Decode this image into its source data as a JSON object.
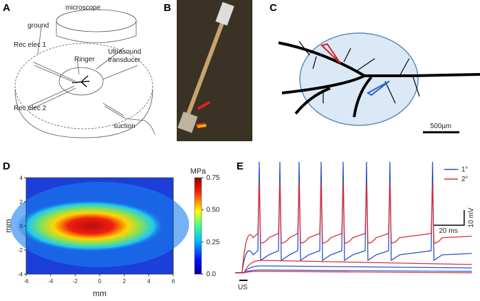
{
  "panel_a": {
    "label": "A",
    "microscope": "microscope",
    "ground": "ground",
    "rec_elec_1": "Rec elec 1",
    "ringer": "Ringer",
    "transducer": [
      "Ultrasound",
      "transducer"
    ],
    "rec_elec_2": "Rec elec 2",
    "suction": "suction"
  },
  "panel_b": {
    "label": "B"
  },
  "panel_c": {
    "label": "C",
    "scale_bar": "500µm"
  },
  "panel_d": {
    "label": "D",
    "x_label": "mm",
    "y_label": "mm",
    "xlim": [
      -6,
      6
    ],
    "xticks": [
      -6,
      -4,
      -2,
      0,
      2,
      4,
      6
    ],
    "ylim": [
      -4,
      4
    ],
    "yticks": [
      -4,
      -2,
      0,
      2,
      4
    ],
    "colorbar": {
      "title": "MPa",
      "lim": [
        0,
        0.75
      ],
      "ticks": [
        {
          "value": 0,
          "label": "0.0"
        },
        {
          "value": 0.25,
          "label": "0.25"
        },
        {
          "value": 0.5,
          "label": "0.50"
        },
        {
          "value": 0.75,
          "label": "0.75"
        }
      ]
    }
  },
  "panel_e": {
    "label": "E",
    "legend": [
      {
        "name": "1°",
        "color": "#2a52c9"
      },
      {
        "name": "2°",
        "color": "#dc2b35"
      }
    ],
    "time_scale": "20 ms",
    "voltage_scale": "10 mV",
    "stimulus": "US"
  }
}
